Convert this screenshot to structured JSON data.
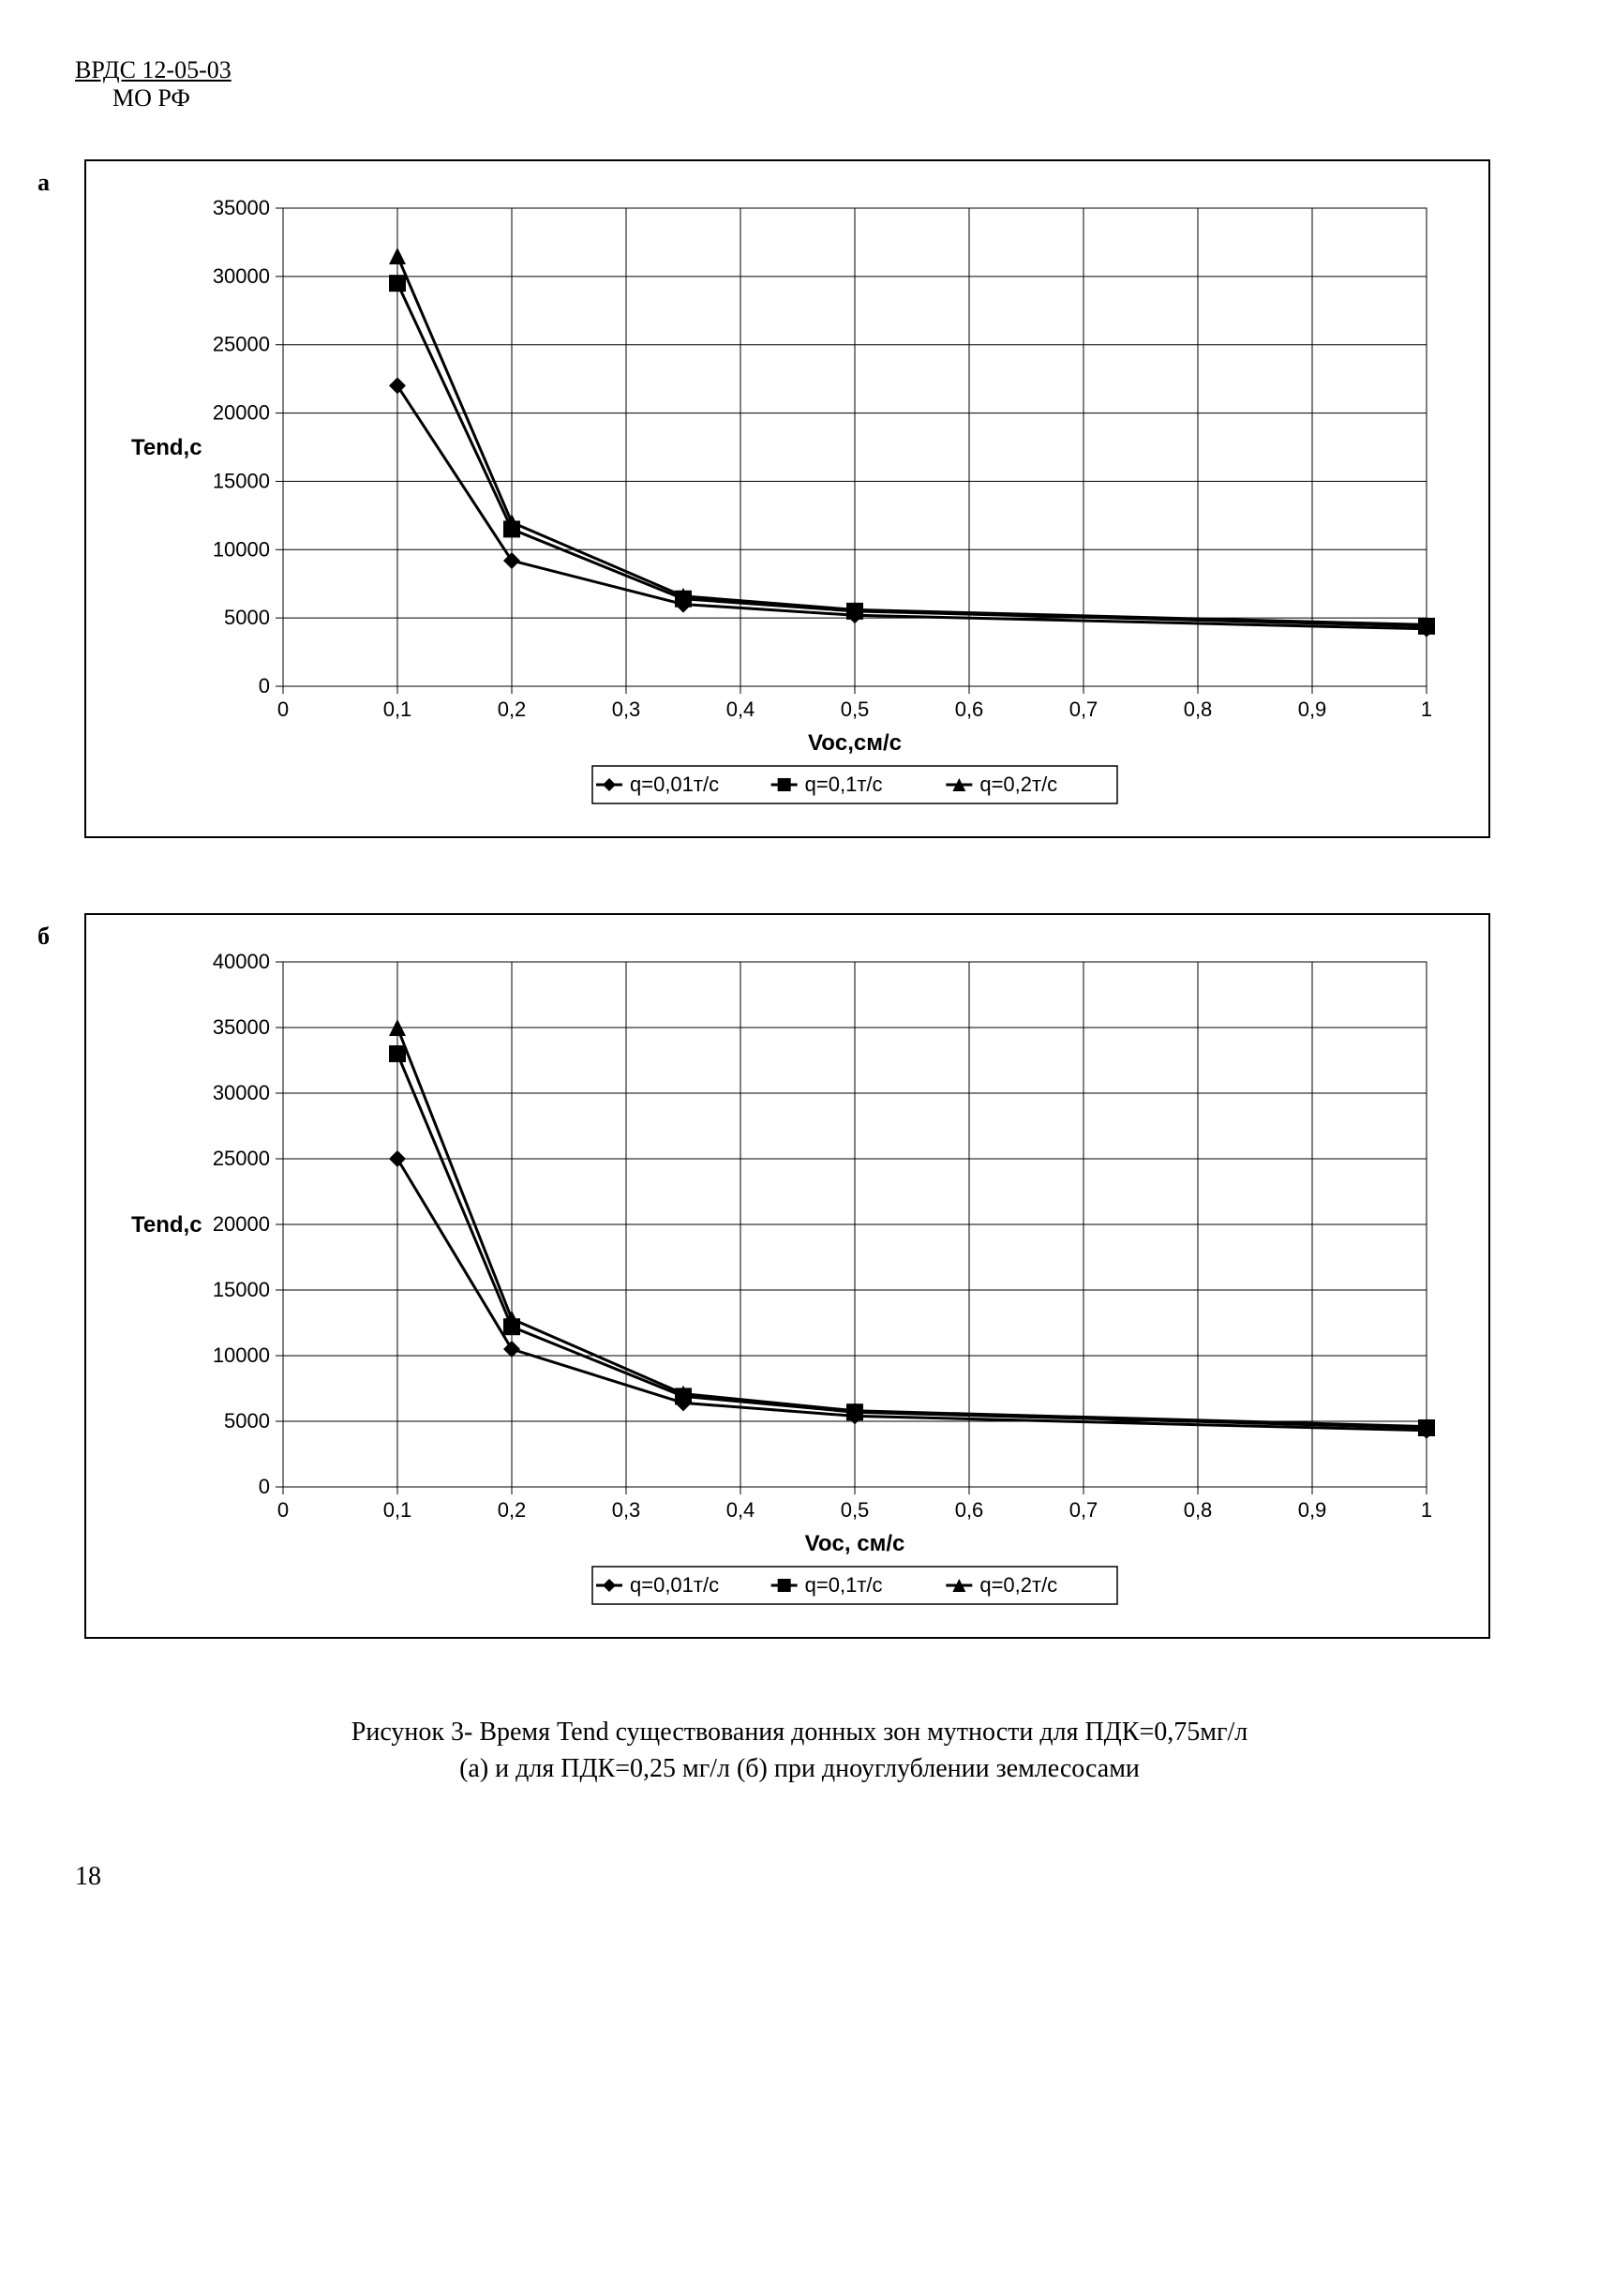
{
  "header": {
    "line1": "ВРДС 12-05-03",
    "line2": "МО РФ"
  },
  "chart_a": {
    "panel_label": "а",
    "type": "line",
    "y_axis_title": "Tend,c",
    "x_axis_title": "Voc,см/c",
    "xlim": [
      0,
      1
    ],
    "ylim": [
      0,
      35000
    ],
    "xticks": [
      0,
      0.1,
      0.2,
      0.3,
      0.4,
      0.5,
      0.6,
      0.7,
      0.8,
      0.9,
      1
    ],
    "xtick_labels": [
      "0",
      "0,1",
      "0,2",
      "0,3",
      "0,4",
      "0,5",
      "0,6",
      "0,7",
      "0,8",
      "0,9",
      "1"
    ],
    "yticks": [
      0,
      5000,
      10000,
      15000,
      20000,
      25000,
      30000,
      35000
    ],
    "ytick_labels": [
      "0",
      "5000",
      "10000",
      "15000",
      "20000",
      "25000",
      "30000",
      "35000"
    ],
    "background_color": "#ffffff",
    "grid_color": "#000000",
    "series": [
      {
        "name": "q=0,01т/c",
        "marker": "diamond",
        "color": "#000000",
        "x": [
          0.1,
          0.2,
          0.35,
          0.5,
          1.0
        ],
        "y": [
          22000,
          9200,
          6000,
          5200,
          4200
        ]
      },
      {
        "name": "q=0,1т/c",
        "marker": "square",
        "color": "#000000",
        "x": [
          0.1,
          0.2,
          0.35,
          0.5,
          1.0
        ],
        "y": [
          29500,
          11500,
          6400,
          5500,
          4400
        ]
      },
      {
        "name": "q=0,2т/c",
        "marker": "triangle",
        "color": "#000000",
        "x": [
          0.1,
          0.2,
          0.35,
          0.5,
          1.0
        ],
        "y": [
          31500,
          12000,
          6600,
          5600,
          4500
        ]
      }
    ],
    "legend_items": [
      "q=0,01т/c",
      "q=0,1т/c",
      "q=0,2т/c"
    ]
  },
  "chart_b": {
    "panel_label": "б",
    "type": "line",
    "y_axis_title": "Tend,c",
    "x_axis_title": "Voc, см/c",
    "xlim": [
      0,
      1
    ],
    "ylim": [
      0,
      40000
    ],
    "xticks": [
      0,
      0.1,
      0.2,
      0.3,
      0.4,
      0.5,
      0.6,
      0.7,
      0.8,
      0.9,
      1
    ],
    "xtick_labels": [
      "0",
      "0,1",
      "0,2",
      "0,3",
      "0,4",
      "0,5",
      "0,6",
      "0,7",
      "0,8",
      "0,9",
      "1"
    ],
    "yticks": [
      0,
      5000,
      10000,
      15000,
      20000,
      25000,
      30000,
      35000,
      40000
    ],
    "ytick_labels": [
      "0",
      "5000",
      "10000",
      "15000",
      "20000",
      "25000",
      "30000",
      "35000",
      "40000"
    ],
    "background_color": "#ffffff",
    "grid_color": "#000000",
    "series": [
      {
        "name": "q=0,01т/c",
        "marker": "diamond",
        "color": "#000000",
        "x": [
          0.1,
          0.2,
          0.35,
          0.5,
          1.0
        ],
        "y": [
          25000,
          10500,
          6400,
          5400,
          4300
        ]
      },
      {
        "name": "q=0,1т/c",
        "marker": "square",
        "color": "#000000",
        "x": [
          0.1,
          0.2,
          0.35,
          0.5,
          1.0
        ],
        "y": [
          33000,
          12200,
          6900,
          5700,
          4500
        ]
      },
      {
        "name": "q=0,2т/c",
        "marker": "triangle",
        "color": "#000000",
        "x": [
          0.1,
          0.2,
          0.35,
          0.5,
          1.0
        ],
        "y": [
          35000,
          12800,
          7100,
          5800,
          4600
        ]
      }
    ],
    "legend_items": [
      "q=0,01т/c",
      "q=0,1т/c",
      "q=0,2т/c"
    ]
  },
  "caption": {
    "line1": "Рисунок 3- Время Tend существования донных зон мутности для ПДК=0,75мг/л",
    "line2": "(а) и для ПДК=0,25 мг/л (б) при дноуглублении землесосами"
  },
  "page_number": "18",
  "style": {
    "marker_size": 9,
    "line_width": 3,
    "font_family_chart": "Arial",
    "tick_fontsize": 22,
    "axis_title_fontsize": 24
  }
}
